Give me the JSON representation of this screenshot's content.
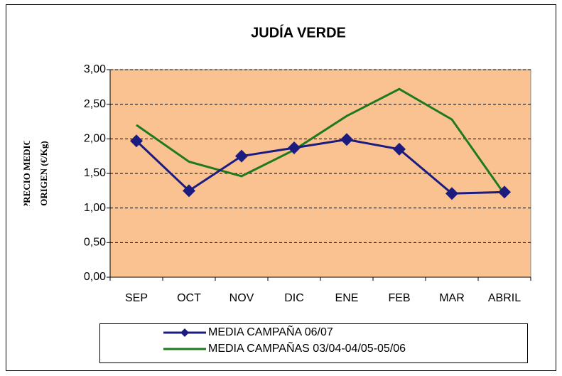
{
  "chart_data": {
    "type": "line",
    "title": "JUDÍA VERDE",
    "y_label": [
      "PRECIO MEDIO",
      "ORIGEN (€/Kg)"
    ],
    "categories": [
      "SEP",
      "OCT",
      "NOV",
      "DIC",
      "ENE",
      "FEB",
      "MAR",
      "ABRIL"
    ],
    "series": [
      {
        "name": "MEDIA CAMPAÑA 06/07",
        "color": "#1c1c80",
        "marker": "diamond",
        "values": [
          1.97,
          1.25,
          1.75,
          1.87,
          1.99,
          1.85,
          1.21,
          1.23
        ]
      },
      {
        "name": "MEDIA CAMPAÑAS 03/04-04/05-05/06",
        "color": "#1f7a1f",
        "marker": "none",
        "values": [
          2.2,
          1.67,
          1.46,
          1.84,
          2.33,
          2.72,
          2.28,
          1.2
        ]
      }
    ],
    "ylim": [
      0,
      3
    ],
    "yticks": [
      {
        "value": 0,
        "label": "0,00"
      },
      {
        "value": 0.5,
        "label": "0,50"
      },
      {
        "value": 1,
        "label": "1,00"
      },
      {
        "value": 1.5,
        "label": "1,50"
      },
      {
        "value": 2,
        "label": "2,00"
      },
      {
        "value": 2.5,
        "label": "2,50"
      },
      {
        "value": 3,
        "label": "3,00"
      }
    ],
    "grid": true,
    "plot_background": "#fac291",
    "legend": "bottom"
  }
}
